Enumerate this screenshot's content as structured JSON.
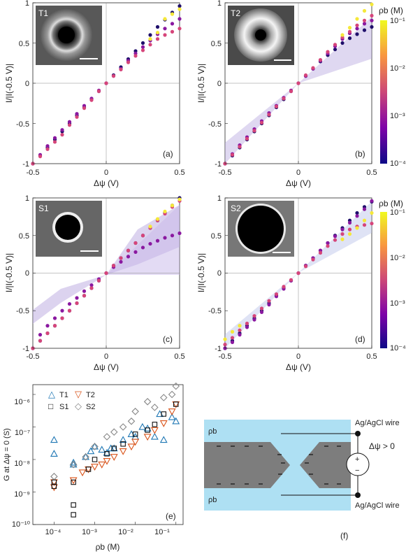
{
  "chart_data": [
    {
      "type": "scatter",
      "panel": "(a)",
      "inset_label": "T1",
      "xlabel": "Δψ (V)",
      "ylabel": "I/|I(-0.5 V)|",
      "xlim": [
        -0.5,
        0.5
      ],
      "ylim": [
        -1,
        1
      ],
      "x_ticks": [
        "-0.5",
        "0",
        "0.5"
      ],
      "y_ticks": [
        "-1",
        "-0.5",
        "0",
        "0.5",
        "1"
      ],
      "series": [
        {
          "rho": 0.0001,
          "color": "#1f0f6b",
          "x": [
            -0.5,
            -0.45,
            -0.4,
            -0.35,
            -0.3,
            -0.25,
            -0.2,
            -0.15,
            -0.1,
            -0.05,
            0,
            0.05,
            0.1,
            0.15,
            0.2,
            0.25,
            0.3,
            0.35,
            0.4,
            0.45,
            0.5
          ],
          "y": [
            -1,
            -0.9,
            -0.8,
            -0.7,
            -0.6,
            -0.5,
            -0.4,
            -0.3,
            -0.2,
            -0.1,
            0,
            0.1,
            0.2,
            0.3,
            0.4,
            0.5,
            0.6,
            0.7,
            0.79,
            0.88,
            0.96
          ]
        },
        {
          "rho": 0.001,
          "color": "#8a18a0",
          "x": [
            -0.5,
            -0.45,
            -0.4,
            -0.35,
            -0.3,
            -0.25,
            -0.2,
            -0.15,
            -0.1,
            -0.05,
            0,
            0.05,
            0.1,
            0.15,
            0.2,
            0.25,
            0.3,
            0.35,
            0.4,
            0.45,
            0.5
          ],
          "y": [
            -1,
            -0.89,
            -0.78,
            -0.68,
            -0.58,
            -0.48,
            -0.38,
            -0.28,
            -0.19,
            -0.09,
            0,
            0.09,
            0.18,
            0.28,
            0.37,
            0.45,
            0.53,
            0.61,
            0.68,
            0.74,
            0.8
          ]
        },
        {
          "rho": 0.01,
          "color": "#d6457a",
          "x": [
            -0.5,
            -0.45,
            -0.4,
            -0.35,
            -0.3,
            -0.25,
            -0.2,
            -0.15,
            -0.1,
            -0.05,
            0,
            0.05,
            0.1,
            0.15,
            0.2,
            0.25,
            0.3,
            0.35,
            0.4,
            0.45,
            0.5
          ],
          "y": [
            -1,
            -0.91,
            -0.82,
            -0.73,
            -0.64,
            -0.52,
            -0.42,
            -0.31,
            -0.21,
            -0.1,
            0,
            0.09,
            0.17,
            0.26,
            0.34,
            0.41,
            0.48,
            0.55,
            0.6,
            0.64,
            0.68
          ]
        },
        {
          "rho": 0.1,
          "color": "#f5e83a",
          "x": [
            0.3,
            0.35,
            0.4,
            0.45,
            0.5
          ],
          "y": [
            0.55,
            0.63,
            0.8,
            0.86,
            0.92
          ]
        }
      ]
    },
    {
      "type": "scatter",
      "panel": "(b)",
      "inset_label": "T2",
      "xlabel": "Δψ (V)",
      "ylabel": "I/|I(-0.5 V)|",
      "xlim": [
        -0.5,
        0.5
      ],
      "ylim": [
        -1,
        1
      ],
      "x_ticks": [
        "-0.5",
        "0",
        "0.5"
      ],
      "y_ticks": [
        "-1",
        "-0.5",
        "0",
        "0.5",
        "1"
      ],
      "colorbar": {
        "label": "ρb (M)",
        "ticks": [
          "10⁻¹",
          "10⁻²",
          "10⁻³",
          "10⁻⁴"
        ]
      },
      "series": [
        {
          "rho": 0.0001,
          "color": "#1f0f6b",
          "x": [
            -0.5,
            -0.45,
            -0.4,
            -0.35,
            -0.3,
            -0.25,
            -0.2,
            -0.15,
            -0.1,
            -0.05,
            0,
            0.05,
            0.1,
            0.15,
            0.2,
            0.25,
            0.3,
            0.35,
            0.4,
            0.45,
            0.5
          ],
          "y": [
            -1,
            -0.9,
            -0.8,
            -0.7,
            -0.6,
            -0.5,
            -0.4,
            -0.3,
            -0.2,
            -0.1,
            0,
            0.09,
            0.18,
            0.27,
            0.35,
            0.42,
            0.5,
            0.56,
            0.61,
            0.66,
            0.7
          ]
        },
        {
          "rho": 0.001,
          "color": "#8a18a0",
          "x": [
            -0.5,
            -0.45,
            -0.4,
            -0.35,
            -0.3,
            -0.25,
            -0.2,
            -0.15,
            -0.1,
            -0.05,
            0,
            0.05,
            0.1,
            0.15,
            0.2,
            0.25,
            0.3,
            0.35,
            0.4,
            0.45,
            0.5
          ],
          "y": [
            -1,
            -0.88,
            -0.77,
            -0.67,
            -0.57,
            -0.47,
            -0.37,
            -0.28,
            -0.18,
            -0.09,
            0,
            0.09,
            0.18,
            0.28,
            0.37,
            0.46,
            0.55,
            0.62,
            0.68,
            0.74,
            0.78
          ]
        },
        {
          "rho": 0.01,
          "color": "#d6457a",
          "x": [
            -0.5,
            -0.45,
            -0.4,
            -0.35,
            -0.3,
            -0.25,
            -0.2,
            -0.15,
            -0.1,
            -0.05,
            0,
            0.05,
            0.1,
            0.15,
            0.2,
            0.25,
            0.3,
            0.35,
            0.4,
            0.45,
            0.5
          ],
          "y": [
            -1,
            -0.89,
            -0.79,
            -0.69,
            -0.59,
            -0.49,
            -0.39,
            -0.29,
            -0.19,
            -0.1,
            0,
            0.1,
            0.19,
            0.29,
            0.39,
            0.48,
            0.57,
            0.64,
            0.72,
            0.78,
            0.84
          ]
        },
        {
          "rho": 0.1,
          "color": "#f5e83a",
          "x": [
            0.3,
            0.35,
            0.4,
            0.45,
            0.5
          ],
          "y": [
            0.6,
            0.69,
            0.8,
            0.9,
            0.98
          ]
        }
      ]
    },
    {
      "type": "scatter",
      "panel": "(c)",
      "inset_label": "S1",
      "xlabel": "Δψ (V)",
      "ylabel": "I/|I(-0.5 V)|",
      "xlim": [
        -0.5,
        0.5
      ],
      "ylim": [
        -1,
        1
      ],
      "x_ticks": [
        "-0.5",
        "0",
        "0.5"
      ],
      "y_ticks": [
        "-1",
        "-0.5",
        "0",
        "0.5",
        "1"
      ],
      "series": [
        {
          "rho": 0.0001,
          "color": "#1f0f6b",
          "x": [
            -0.5,
            -0.45,
            -0.4,
            -0.35,
            -0.3,
            -0.25,
            -0.2,
            -0.15,
            -0.1,
            -0.05,
            0,
            0.05,
            0.1,
            0.15,
            0.2,
            0.25,
            0.3,
            0.35,
            0.4,
            0.45,
            0.5
          ],
          "y": [
            -1,
            -0.9,
            -0.8,
            -0.7,
            -0.6,
            -0.5,
            -0.4,
            -0.3,
            -0.2,
            -0.1,
            0,
            0.1,
            0.2,
            0.3,
            0.4,
            0.5,
            0.6,
            0.7,
            0.8,
            0.9,
            1
          ]
        },
        {
          "rho": 0.001,
          "color": "#8a18a0",
          "x": [
            -0.5,
            -0.45,
            -0.4,
            -0.35,
            -0.3,
            -0.25,
            -0.2,
            -0.15,
            -0.1,
            -0.05,
            0,
            0.05,
            0.1,
            0.15,
            0.2,
            0.25,
            0.3,
            0.35,
            0.4,
            0.45,
            0.5
          ],
          "y": [
            -1,
            -0.82,
            -0.7,
            -0.6,
            -0.5,
            -0.41,
            -0.33,
            -0.24,
            -0.16,
            -0.08,
            0,
            0.08,
            0.15,
            0.22,
            0.28,
            0.34,
            0.39,
            0.43,
            0.47,
            0.5,
            0.53
          ]
        },
        {
          "rho": 0.01,
          "color": "#d6457a",
          "x": [
            -0.5,
            -0.45,
            -0.4,
            -0.35,
            -0.3,
            -0.25,
            -0.2,
            -0.15,
            -0.1,
            -0.05,
            0,
            0.05,
            0.1,
            0.15,
            0.2,
            0.25,
            0.3,
            0.35,
            0.4,
            0.45,
            0.5
          ],
          "y": [
            -1,
            -0.9,
            -0.8,
            -0.7,
            -0.6,
            -0.5,
            -0.4,
            -0.3,
            -0.2,
            -0.1,
            0,
            0.1,
            0.2,
            0.3,
            0.4,
            0.5,
            0.6,
            0.7,
            0.79,
            0.88,
            0.96
          ]
        },
        {
          "rho": 0.1,
          "color": "#f5e83a",
          "x": [
            0.3,
            0.35,
            0.4,
            0.45,
            0.5
          ],
          "y": [
            0.62,
            0.72,
            0.82,
            0.9,
            0.98
          ]
        }
      ]
    },
    {
      "type": "scatter",
      "panel": "(d)",
      "inset_label": "S2",
      "xlabel": "Δψ (V)",
      "ylabel": "I/|I(-0.5 V)|",
      "xlim": [
        -0.5,
        0.5
      ],
      "ylim": [
        -1,
        1
      ],
      "x_ticks": [
        "-0.5",
        "0",
        "0.5"
      ],
      "y_ticks": [
        "-1",
        "-0.5",
        "0",
        "0.5",
        "1"
      ],
      "colorbar": {
        "label": "ρb (M)",
        "ticks": [
          "10⁻¹",
          "10⁻²",
          "10⁻³",
          "10⁻⁴"
        ]
      },
      "series": [
        {
          "rho": 0.0001,
          "color": "#1f0f6b",
          "x": [
            -0.5,
            -0.45,
            -0.4,
            -0.35,
            -0.3,
            -0.25,
            -0.2,
            -0.15,
            -0.1,
            -0.05,
            0,
            0.05,
            0.1,
            0.15,
            0.2,
            0.25,
            0.3,
            0.35,
            0.4,
            0.45,
            0.5
          ],
          "y": [
            -1,
            -0.9,
            -0.8,
            -0.7,
            -0.6,
            -0.5,
            -0.4,
            -0.3,
            -0.2,
            -0.1,
            0,
            0.1,
            0.2,
            0.3,
            0.4,
            0.5,
            0.6,
            0.7,
            0.8,
            0.88,
            0.95
          ]
        },
        {
          "rho": 0.001,
          "color": "#8a18a0",
          "x": [
            -0.5,
            -0.45,
            -0.4,
            -0.35,
            -0.3,
            -0.25,
            -0.2,
            -0.15,
            -0.1,
            -0.05,
            0,
            0.05,
            0.1,
            0.15,
            0.2,
            0.25,
            0.3,
            0.35,
            0.4,
            0.45,
            0.5
          ],
          "y": [
            -1,
            -0.92,
            -0.82,
            -0.72,
            -0.62,
            -0.52,
            -0.42,
            -0.31,
            -0.21,
            -0.1,
            0,
            0.1,
            0.2,
            0.3,
            0.4,
            0.49,
            0.58,
            0.67,
            0.76,
            0.85,
            0.96
          ]
        },
        {
          "rho": 0.01,
          "color": "#d6457a",
          "x": [
            -0.5,
            -0.45,
            -0.4,
            -0.35,
            -0.3,
            -0.25,
            -0.2,
            -0.15,
            -0.1,
            -0.05,
            0,
            0.05,
            0.1,
            0.15,
            0.2,
            0.25,
            0.3,
            0.35,
            0.4,
            0.45,
            0.5
          ],
          "y": [
            -0.95,
            -0.86,
            -0.76,
            -0.67,
            -0.57,
            -0.47,
            -0.37,
            -0.28,
            -0.18,
            -0.09,
            0,
            0.09,
            0.18,
            0.27,
            0.36,
            0.44,
            0.52,
            0.58,
            0.62,
            0.64,
            0.66
          ]
        },
        {
          "rho": 0.1,
          "color": "#f5e83a",
          "x": [
            -0.5,
            -0.45,
            -0.4,
            0.3,
            0.35,
            0.4,
            0.45,
            0.5
          ],
          "y": [
            -0.88,
            -0.78,
            -0.7,
            0.45,
            0.52,
            0.6,
            0.7,
            0.8
          ]
        }
      ]
    },
    {
      "type": "scatter",
      "panel": "(e)",
      "xlabel": "ρb (M)",
      "ylabel": "G at Δψ = 0 (S)",
      "xscale": "log",
      "yscale": "log",
      "xlim": [
        3e-05,
        0.15
      ],
      "ylim": [
        1e-10,
        2e-06
      ],
      "x_ticks": [
        "10⁻⁴",
        "10⁻³",
        "10⁻²",
        "10⁻¹"
      ],
      "y_ticks": [
        "10⁻¹⁰",
        "10⁻⁹",
        "10⁻⁸",
        "10⁻⁷",
        "10⁻⁶"
      ],
      "legend": [
        "T1",
        "T2",
        "S1",
        "S2"
      ],
      "legend_position": "top-left",
      "series": [
        {
          "name": "T1",
          "marker": "triangle-up",
          "color": "#1f77b4",
          "x": [
            0.0001,
            0.0001,
            0.0003,
            0.0003,
            0.0006,
            0.0008,
            0.001,
            0.0015,
            0.002,
            0.0025,
            0.003,
            0.005,
            0.008,
            0.01,
            0.015,
            0.02,
            0.03,
            0.04,
            0.05,
            0.08,
            0.1
          ],
          "y": [
            1.5e-08,
            4e-08,
            8e-09,
            7e-09,
            1.2e-08,
            1.8e-08,
            2.5e-08,
            2e-08,
            1.6e-08,
            2.2e-08,
            2.2e-08,
            4e-08,
            6e-08,
            5e-08,
            1e-07,
            9e-08,
            5e-08,
            2.5e-07,
            4e-08,
            2e-07,
            1.5e-07
          ]
        },
        {
          "name": "T2",
          "marker": "triangle-down",
          "color": "#d95319",
          "x": [
            0.0001,
            0.0001,
            0.0003,
            0.0005,
            0.0007,
            0.001,
            0.0015,
            0.002,
            0.003,
            0.005,
            0.008,
            0.01,
            0.02,
            0.03,
            0.05,
            0.08,
            0.1
          ],
          "y": [
            1.4e-09,
            2e-09,
            2.3e-09,
            4e-09,
            5e-09,
            6e-09,
            7e-09,
            9e-09,
            1.2e-08,
            1.8e-08,
            2.5e-08,
            3.5e-08,
            5e-08,
            8e-08,
            1.3e-07,
            3e-07,
            5e-07
          ]
        },
        {
          "name": "S1",
          "marker": "square",
          "color": "#111111",
          "x": [
            0.0001,
            0.0001,
            0.0003,
            0.0003,
            0.0003,
            0.0007,
            0.001,
            0.002,
            0.003,
            0.005,
            0.01,
            0.02,
            0.03,
            0.05,
            0.1
          ],
          "y": [
            2e-09,
            1.5e-09,
            2e-09,
            4e-10,
            2e-10,
            5e-09,
            1e-08,
            1.5e-08,
            2.2e-08,
            3e-08,
            6e-08,
            8e-08,
            1.2e-07,
            2.5e-07,
            5e-07
          ]
        },
        {
          "name": "S2",
          "marker": "diamond",
          "color": "#888888",
          "x": [
            0.0001,
            0.0003,
            0.0006,
            0.001,
            0.002,
            0.003,
            0.005,
            0.008,
            0.01,
            0.02,
            0.03,
            0.05,
            0.08,
            0.1
          ],
          "y": [
            3e-09,
            7e-09,
            1.2e-08,
            2.5e-08,
            5e-08,
            7e-08,
            1e-07,
            1.5e-07,
            3e-07,
            6e-07,
            4e-07,
            8e-07,
            1e-06,
            1.8e-06
          ]
        }
      ]
    }
  ],
  "diagram": {
    "panel": "(f)",
    "rho_top": "ρb",
    "rho_bottom": "ρb",
    "wire_top": "Ag/AgCl wire",
    "wire_bottom": "Ag/AgCl wire",
    "bias": "Δψ > 0",
    "plus": "+",
    "minus": "−"
  }
}
